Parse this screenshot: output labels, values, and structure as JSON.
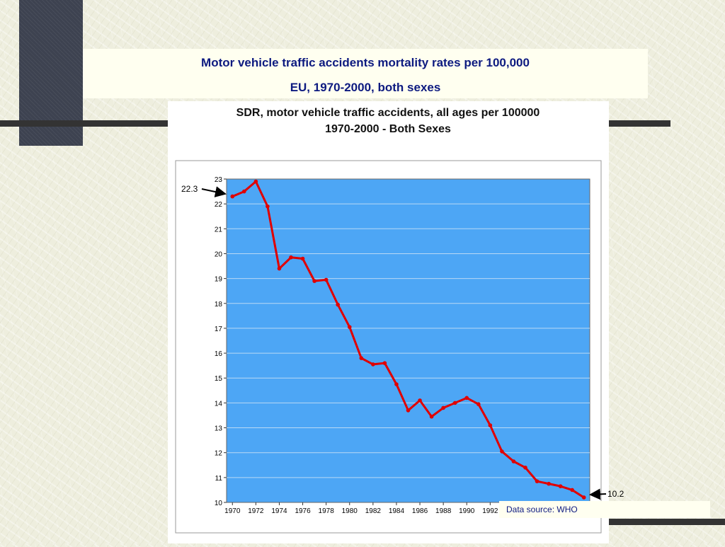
{
  "slide": {
    "title_line1": "Motor vehicle traffic accidents mortality rates per 100,000",
    "title_line2": "EU, 1970-2000, both sexes",
    "source": "Data source: WHO",
    "start_label": "22.3",
    "end_label": "10.2"
  },
  "chart_data": {
    "type": "line",
    "title": "SDR, motor vehicle traffic accidents, all ages per 100000",
    "subtitle": "1970-2000 - Both Sexes",
    "xlabel": "",
    "ylabel": "",
    "x": [
      1970,
      1971,
      1972,
      1973,
      1974,
      1975,
      1976,
      1977,
      1978,
      1979,
      1980,
      1981,
      1982,
      1983,
      1984,
      1985,
      1986,
      1987,
      1988,
      1989,
      1990,
      1991,
      1992,
      1993,
      1994,
      1995,
      1996,
      1997,
      1998,
      1999,
      2000
    ],
    "series": [
      {
        "values": [
          22.3,
          22.5,
          22.9,
          21.9,
          19.4,
          19.85,
          19.8,
          18.9,
          18.95,
          17.95,
          17.05,
          15.8,
          15.55,
          15.6,
          14.75,
          13.7,
          14.1,
          13.45,
          13.8,
          14.0,
          14.2,
          13.95,
          13.1,
          12.05,
          11.65,
          11.4,
          10.85,
          10.75,
          10.65,
          10.5,
          10.2
        ],
        "color": "#e00000"
      }
    ],
    "xticks": [
      "1970",
      "1972",
      "1974",
      "1976",
      "1978",
      "1980",
      "1982",
      "1984",
      "1986",
      "1988",
      "1990",
      "1992"
    ],
    "ylim": [
      10,
      23
    ],
    "yticks": [
      10,
      11,
      12,
      13,
      14,
      15,
      16,
      17,
      18,
      19,
      20,
      21,
      22,
      23
    ],
    "grid": true,
    "legend": "none",
    "plot_bg": "#4da6f5"
  }
}
